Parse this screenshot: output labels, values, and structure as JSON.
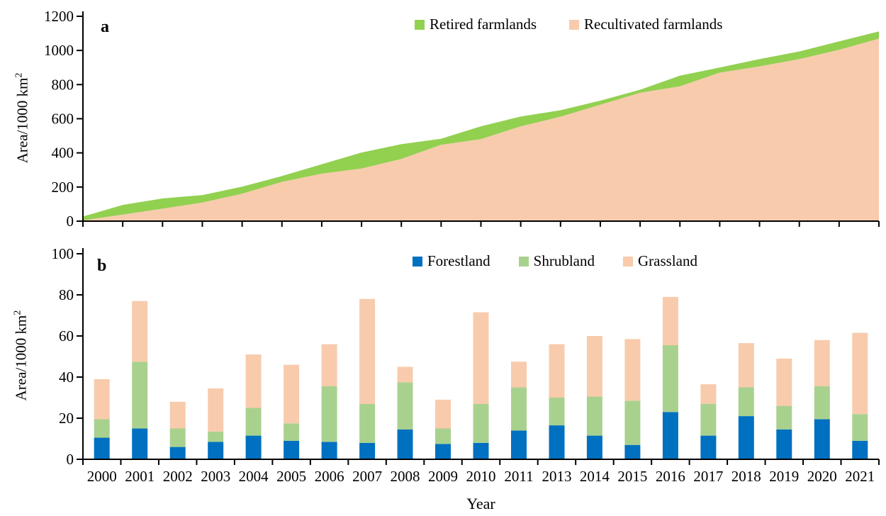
{
  "figure": {
    "xlabel": "Year",
    "panel_a_letter": "a",
    "panel_b_letter": "b"
  },
  "chart_data": [
    {
      "id": "a",
      "type": "area",
      "stacked": true,
      "panel_label": "a",
      "ylabel_main": "Area/1000 km",
      "ylabel_sup": "2",
      "ylim": [
        0,
        1200
      ],
      "yticks": [
        "0",
        "200",
        "400",
        "600",
        "800",
        "1000",
        "1200"
      ],
      "grid": false,
      "legend_position": "top-center",
      "legend_order": [
        "Retired farmlands",
        "Recultivated farmlands"
      ],
      "categories": [
        "2000",
        "2001",
        "2002",
        "2003",
        "2004",
        "2005",
        "2006",
        "2007",
        "2008",
        "2009",
        "2010",
        "2011",
        "2013",
        "2014",
        "2015",
        "2016",
        "2017",
        "2018",
        "2019",
        "2020",
        "2021"
      ],
      "series": [
        {
          "name": "Recultivated farmlands",
          "color": "#F8CBAD",
          "values": [
            4,
            38,
            73,
            109,
            161,
            230,
            278,
            308,
            364,
            447,
            481,
            555,
            612,
            682,
            752,
            790,
            870,
            907,
            949,
            1004,
            1069
          ]
        },
        {
          "name": "Retired farmlands",
          "color": "#92D050",
          "values": [
            23,
            57,
            60,
            44,
            41,
            34,
            55,
            94,
            87,
            36,
            74,
            58,
            38,
            24,
            18,
            62,
            30,
            42,
            45,
            49,
            42
          ]
        }
      ],
      "stacked_totals": [
        27,
        95,
        133,
        153,
        202,
        264,
        333,
        402,
        451,
        483,
        555,
        613,
        650,
        706,
        770,
        852,
        900,
        949,
        994,
        1053,
        1111
      ]
    },
    {
      "id": "b",
      "type": "bar",
      "stacked": true,
      "panel_label": "b",
      "ylabel_main": "Area/1000 km",
      "ylabel_sup": "2",
      "xlabel": "Year",
      "ylim": [
        0,
        100
      ],
      "yticks": [
        "0",
        "20",
        "40",
        "60",
        "80",
        "100"
      ],
      "grid": false,
      "legend_position": "top-center",
      "legend_order": [
        "Forestland",
        "Shrubland",
        "Grassland"
      ],
      "categories": [
        "2000",
        "2001",
        "2002",
        "2003",
        "2004",
        "2005",
        "2006",
        "2007",
        "2008",
        "2009",
        "2010",
        "2011",
        "2013",
        "2014",
        "2015",
        "2016",
        "2017",
        "2018",
        "2019",
        "2020",
        "2021"
      ],
      "series": [
        {
          "name": "Forestland",
          "color": "#0070C0",
          "values": [
            10.5,
            15,
            6,
            8.5,
            11.5,
            9,
            8.5,
            8,
            14.5,
            7.5,
            8,
            14,
            16.5,
            11.5,
            7,
            23,
            11.5,
            21,
            14.5,
            19.5,
            9
          ]
        },
        {
          "name": "Shrubland",
          "color": "#A9D18E",
          "values": [
            9,
            32.5,
            9,
            5,
            13.5,
            8.5,
            27,
            19,
            23,
            7.5,
            19,
            21,
            13.5,
            19,
            21.5,
            32.5,
            15.5,
            14,
            11.5,
            16,
            13
          ]
        },
        {
          "name": "Grassland",
          "color": "#F8CBAD",
          "values": [
            19.5,
            29.5,
            13,
            21,
            26,
            28.5,
            20.5,
            51,
            7.5,
            14,
            44.5,
            12.5,
            26,
            29.5,
            30,
            23.5,
            9.5,
            21.5,
            23,
            22.5,
            39.5
          ]
        }
      ]
    }
  ]
}
